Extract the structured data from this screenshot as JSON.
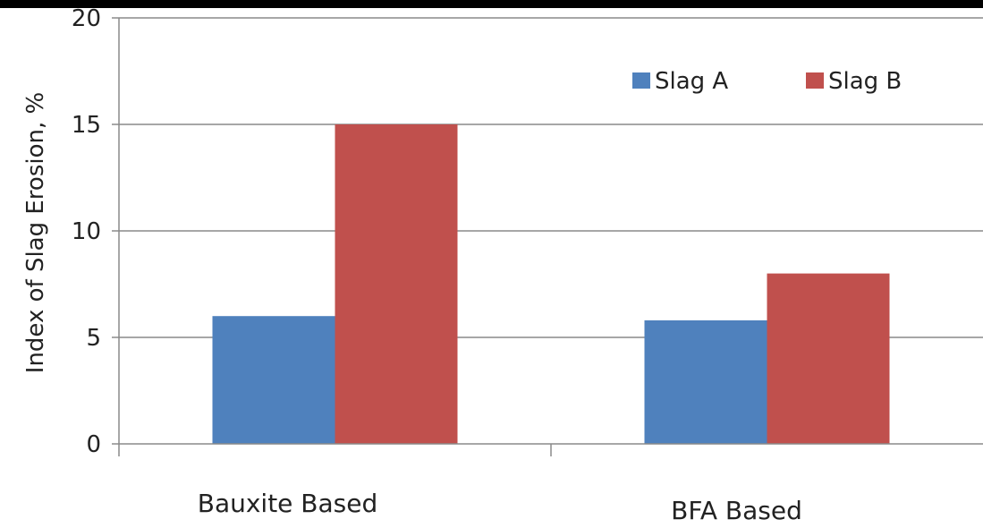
{
  "chart_data": {
    "type": "bar",
    "title": "",
    "xlabel": "",
    "ylabel": "Index of Slag Erosion, %",
    "categories": [
      "Bauxite Based",
      "BFA Based"
    ],
    "series": [
      {
        "name": "Slag A",
        "values": [
          6,
          5.8
        ],
        "color": "#4F81BD"
      },
      {
        "name": "Slag B",
        "values": [
          15,
          8
        ],
        "color": "#C0504D"
      }
    ],
    "ylim": [
      0,
      20
    ],
    "yticks": [
      "0",
      "5",
      "10",
      "15",
      "20"
    ],
    "grid": true,
    "legend_position": "top-right"
  }
}
